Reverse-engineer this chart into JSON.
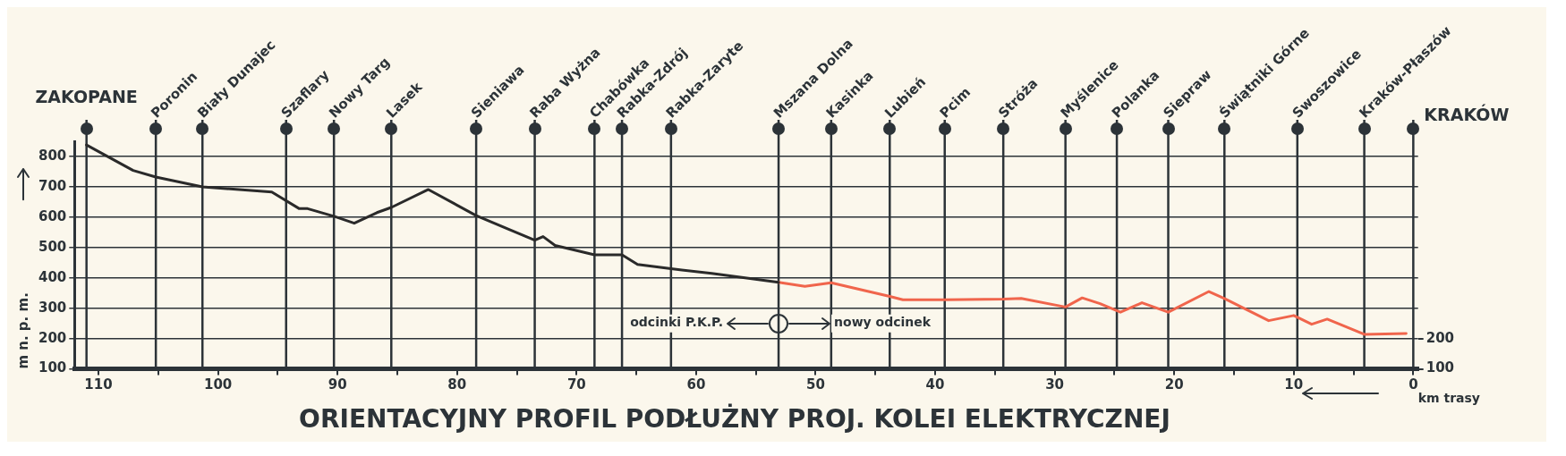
{
  "chart_data": {
    "type": "line",
    "title": "ORIENTACYJNY PROFIL PODŁUŻNY PROJ. KOLEI ELEKTRYCZNEJ",
    "xlabel": "km trasy",
    "ylabel": "m n. p. m.",
    "xlim": [
      112,
      -0.4
    ],
    "xticks": [
      {
        "value": 0,
        "label": "0"
      },
      {
        "value": 5,
        "label": null
      },
      10,
      {
        "value": 15,
        "label": null
      },
      20,
      {
        "value": 25,
        "label": null
      },
      30,
      {
        "value": 35,
        "label": null
      },
      40,
      {
        "value": 45,
        "label": null
      },
      50,
      {
        "value": 55,
        "label": null
      },
      60,
      {
        "value": 65,
        "label": null
      },
      70,
      {
        "value": 75,
        "label": null
      },
      80,
      {
        "value": 85,
        "label": null
      },
      90,
      {
        "value": 95,
        "label": null
      },
      100,
      {
        "value": 105,
        "label": null
      },
      110
    ],
    "ylim": [
      100,
      850
    ],
    "yticks": [
      100,
      200,
      300,
      400,
      500,
      600,
      700,
      800
    ],
    "y2lim": [
      100,
      850
    ],
    "y2ticks": [
      100,
      200
    ],
    "grid": "y",
    "legend": false,
    "marker": "none",
    "line_style": "solid",
    "series": [
      {
        "color": "#2a2a2a",
        "x": [
          111,
          107.1,
          105.2,
          101.3,
          95.5,
          93.2,
          92.5,
          90.3,
          88.6,
          86.7,
          85.5,
          82.4,
          78.4,
          73.5,
          72.8,
          71.8,
          68.5,
          66.2,
          64.9,
          62.1,
          58.7,
          53.1
        ],
        "values": [
          838,
          754,
          732,
          700,
          683,
          628,
          628,
          603,
          580,
          615,
          632,
          691,
          605,
          524,
          536,
          507,
          476,
          476,
          444,
          430,
          415,
          385
        ]
      },
      {
        "color": "#f0654c",
        "x": [
          53.1,
          50.9,
          48.7,
          43.8,
          42.7,
          39.2,
          34.3,
          32.8,
          29.1,
          27.7,
          26.2,
          24.5,
          22.7,
          20.5,
          17.1,
          15.8,
          12.1,
          10.0,
          8.5,
          7.2,
          4.1,
          0.6
        ],
        "values": [
          385,
          372,
          384,
          339,
          328,
          328,
          330,
          332,
          304,
          334,
          315,
          287,
          318,
          287,
          355,
          332,
          259,
          276,
          247,
          264,
          214,
          217
        ]
      }
    ],
    "ref_lines": [
      {
        "axis": "x",
        "value": 111,
        "label": "ZAKOPANE"
      },
      {
        "axis": "x",
        "value": 105.2,
        "label": "Poronin"
      },
      {
        "axis": "x",
        "value": 101.3,
        "label": "Biały Dunajec"
      },
      {
        "axis": "x",
        "value": 94.3,
        "label": "Szaflary"
      },
      {
        "axis": "x",
        "value": 90.3,
        "label": "Nowy Targ"
      },
      {
        "axis": "x",
        "value": 85.5,
        "label": "Lasek"
      },
      {
        "axis": "x",
        "value": 78.4,
        "label": "Sieniawa"
      },
      {
        "axis": "x",
        "value": 73.5,
        "label": "Raba Wyżna"
      },
      {
        "axis": "x",
        "value": 68.5,
        "label": "Chabówka"
      },
      {
        "axis": "x",
        "value": 66.2,
        "label": "Rabka-Zdrój"
      },
      {
        "axis": "x",
        "value": 62.1,
        "label": "Rabka-Zaryte"
      },
      {
        "axis": "x",
        "value": 53.1,
        "label": "Mszana Dolna"
      },
      {
        "axis": "x",
        "value": 48.7,
        "label": "Kasinka"
      },
      {
        "axis": "x",
        "value": 43.8,
        "label": "Lubień"
      },
      {
        "axis": "x",
        "value": 39.2,
        "label": "Pcim"
      },
      {
        "axis": "x",
        "value": 34.3,
        "label": "Stróża"
      },
      {
        "axis": "x",
        "value": 29.1,
        "label": "Myślenice"
      },
      {
        "axis": "x",
        "value": 24.8,
        "label": "Polanka"
      },
      {
        "axis": "x",
        "value": 20.5,
        "label": "Siepraw"
      },
      {
        "axis": "x",
        "value": 15.8,
        "label": "Świątniki Górne"
      },
      {
        "axis": "x",
        "value": 9.7,
        "label": "Swoszowice"
      },
      {
        "axis": "x",
        "value": 4.1,
        "label": "Kraków-Płaszów"
      },
      {
        "axis": "x",
        "value": 0,
        "label": "KRAKÓW"
      }
    ],
    "annotations": [
      "odcinki P.K.P.",
      "nowy odcinek"
    ]
  }
}
